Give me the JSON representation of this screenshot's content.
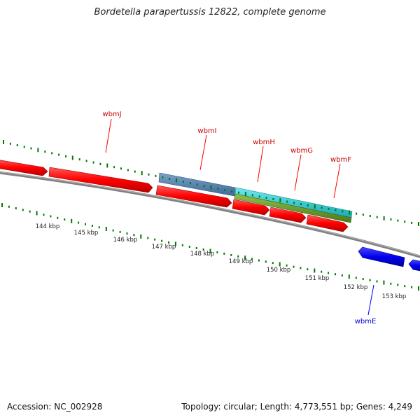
{
  "title": "Bordetella parapertussis 12822, complete genome",
  "footer": {
    "accession": "Accession: NC_002928",
    "summary": "Topology: circular; Length: 4,773,551 bp; Genes: 4,249"
  },
  "colors": {
    "forward_gene": "#ff0000",
    "reverse_gene": "#0000ee",
    "backbone": "#808080",
    "ticks": "#007a00",
    "forward_label": "#cc0000",
    "reverse_label": "#0000cc",
    "feature_steel": "#5a84b0",
    "feature_cyan": "#22cbd6",
    "feature_olive": "#6b9a2a"
  },
  "scale_labels": [
    "144 kbp",
    "145 kbp",
    "146 kbp",
    "147 kbp",
    "148 kbp",
    "149 kbp",
    "150 kbp",
    "151 kbp",
    "152 kbp",
    "153 kbp"
  ],
  "gene_labels": [
    {
      "name": "wbmJ",
      "strand": "forward"
    },
    {
      "name": "wbmI",
      "strand": "forward"
    },
    {
      "name": "wbmH",
      "strand": "forward"
    },
    {
      "name": "wbmG",
      "strand": "forward"
    },
    {
      "name": "wbmF",
      "strand": "forward"
    },
    {
      "name": "wbmE",
      "strand": "reverse"
    }
  ]
}
